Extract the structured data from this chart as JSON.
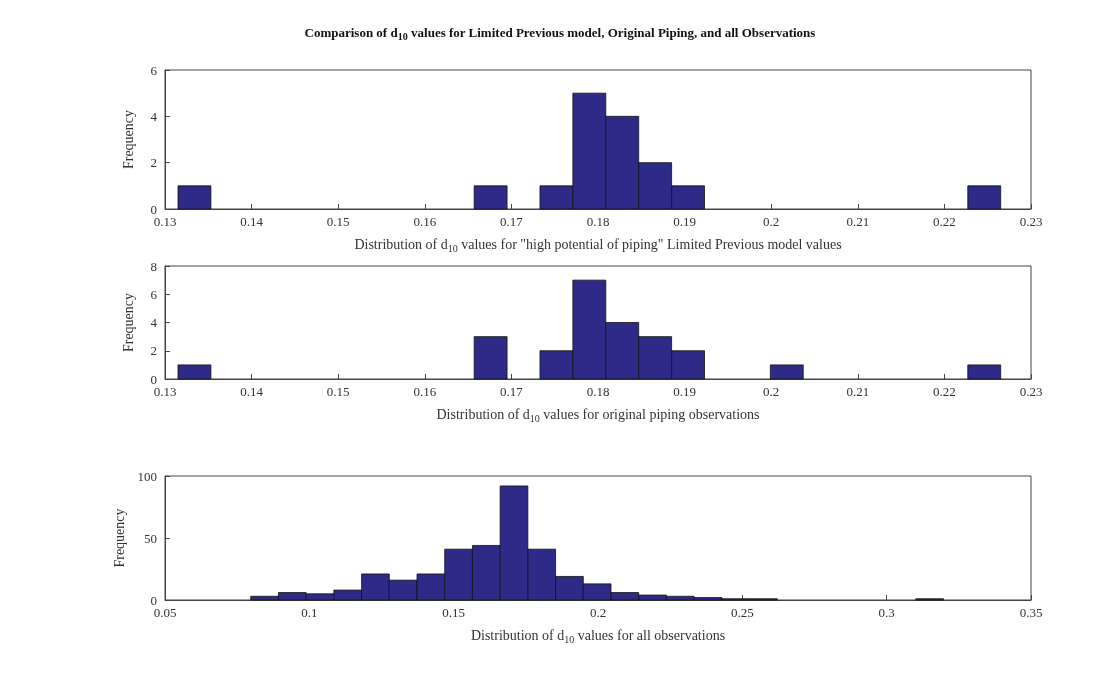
{
  "chart_data": [
    {
      "type": "histogram",
      "title": "Comparison of d$_{10}$ values for Limited Previous model, Original Piping, and all Observations",
      "xlabel": "Distribution of d$_{10}$ values for \"high potential of piping\" Limited Previous model values",
      "ylabel": "Frequency",
      "color": "#2e2a87",
      "bins": [
        0.1315,
        0.1353,
        0.1391,
        0.1429,
        0.1467,
        0.1505,
        0.1543,
        0.1581,
        0.1619,
        0.1657,
        0.1695,
        0.1733,
        0.1771,
        0.1809,
        0.1847,
        0.1885,
        0.1923,
        0.1961,
        0.1999,
        0.2037,
        0.2075,
        0.2113,
        0.2151,
        0.2189,
        0.2227,
        0.2265
      ],
      "values": [
        1,
        0,
        0,
        0,
        0,
        0,
        0,
        0,
        0,
        1,
        0,
        1,
        5,
        4,
        2,
        1,
        0,
        0,
        0,
        0,
        0,
        0,
        0,
        0,
        1
      ],
      "xlim": [
        0.13,
        0.23
      ],
      "xticks": [
        0.13,
        0.14,
        0.15,
        0.16,
        0.17,
        0.18,
        0.19,
        0.2,
        0.21,
        0.22,
        0.23
      ],
      "ylim": [
        0,
        6
      ],
      "yticks": [
        0,
        2,
        4,
        6
      ]
    },
    {
      "type": "histogram",
      "xlabel": "Distribution of d$_{10}$ values for original piping observations",
      "ylabel": "Frequency",
      "color": "#2e2a87",
      "bins": [
        0.1315,
        0.1353,
        0.1391,
        0.1429,
        0.1467,
        0.1505,
        0.1543,
        0.1581,
        0.1619,
        0.1657,
        0.1695,
        0.1733,
        0.1771,
        0.1809,
        0.1847,
        0.1885,
        0.1923,
        0.1961,
        0.1999,
        0.2037,
        0.2075,
        0.2113,
        0.2151,
        0.2189,
        0.2227,
        0.2265
      ],
      "values": [
        1,
        0,
        0,
        0,
        0,
        0,
        0,
        0,
        0,
        3,
        0,
        2,
        7,
        4,
        3,
        2,
        0,
        0,
        1,
        0,
        0,
        0,
        0,
        0,
        1
      ],
      "xlim": [
        0.13,
        0.23
      ],
      "xticks": [
        0.13,
        0.14,
        0.15,
        0.16,
        0.17,
        0.18,
        0.19,
        0.2,
        0.21,
        0.22,
        0.23
      ],
      "ylim": [
        0,
        8
      ],
      "yticks": [
        0,
        2,
        4,
        6,
        8
      ]
    },
    {
      "type": "histogram",
      "xlabel": "Distribution of d$_{10}$ values for all observations",
      "ylabel": "Frequency",
      "color": "#2e2a87",
      "bins": [
        0.0797,
        0.0893,
        0.0989,
        0.1085,
        0.1181,
        0.1277,
        0.1373,
        0.1469,
        0.1565,
        0.1661,
        0.1757,
        0.1853,
        0.1949,
        0.2045,
        0.2141,
        0.2237,
        0.2333,
        0.2429,
        0.2525,
        0.2621,
        0.2717,
        0.2813,
        0.2909,
        0.3005,
        0.3101,
        0.3197
      ],
      "values": [
        3,
        6,
        5,
        8,
        21,
        16,
        21,
        41,
        44,
        92,
        41,
        19,
        13,
        6,
        4,
        3,
        2,
        1,
        1,
        0,
        0,
        0,
        0,
        0,
        1
      ],
      "xlim": [
        0.05,
        0.35
      ],
      "xticks": [
        0.05,
        0.1,
        0.15,
        0.2,
        0.25,
        0.3,
        0.35
      ],
      "ylim": [
        0,
        100
      ],
      "yticks": [
        0,
        50,
        100
      ]
    }
  ]
}
